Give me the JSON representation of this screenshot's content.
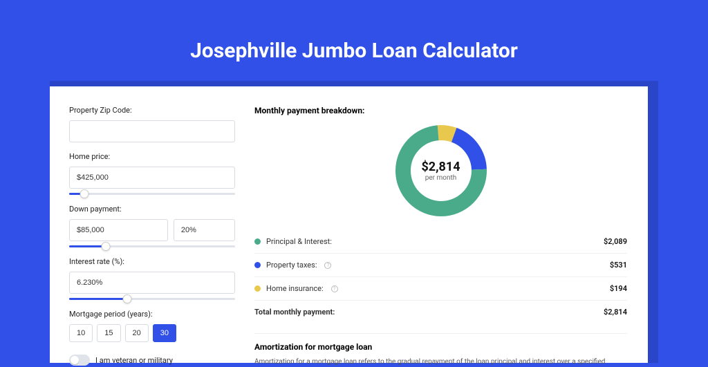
{
  "page": {
    "title": "Josephville Jumbo Loan Calculator",
    "background_color": "#3050e8",
    "card_shadow_color": "#2a45c8",
    "card_bg": "#ffffff"
  },
  "form": {
    "zip": {
      "label": "Property Zip Code:",
      "value": ""
    },
    "home_price": {
      "label": "Home price:",
      "value": "$425,000",
      "slider_pct": 9
    },
    "down_payment": {
      "label": "Down payment:",
      "amount": "$85,000",
      "pct": "20%",
      "slider_pct": 22
    },
    "interest": {
      "label": "Interest rate (%):",
      "value": "6.230%",
      "slider_pct": 35
    },
    "period": {
      "label": "Mortgage period (years):",
      "options": [
        "10",
        "15",
        "20",
        "30"
      ],
      "selected": "30"
    },
    "veteran": {
      "label": "I am veteran or military",
      "on": false
    }
  },
  "breakdown": {
    "title": "Monthly payment breakdown:",
    "center_amount": "$2,814",
    "center_sub": "per month",
    "items": [
      {
        "label": "Principal & Interest:",
        "value": "$2,089",
        "color": "#4aab8a",
        "pct": 74.2,
        "info": false
      },
      {
        "label": "Property taxes:",
        "value": "$531",
        "color": "#3050e8",
        "pct": 18.9,
        "info": true
      },
      {
        "label": "Home insurance:",
        "value": "$194",
        "color": "#e9c94d",
        "pct": 6.9,
        "info": true
      }
    ],
    "total_label": "Total monthly payment:",
    "total_value": "$2,814",
    "donut": {
      "stroke_width": 22,
      "radius": 55
    }
  },
  "amortization": {
    "title": "Amortization for mortgage loan",
    "text": "Amortization for a mortgage loan refers to the gradual repayment of the loan principal and interest over a specified"
  }
}
